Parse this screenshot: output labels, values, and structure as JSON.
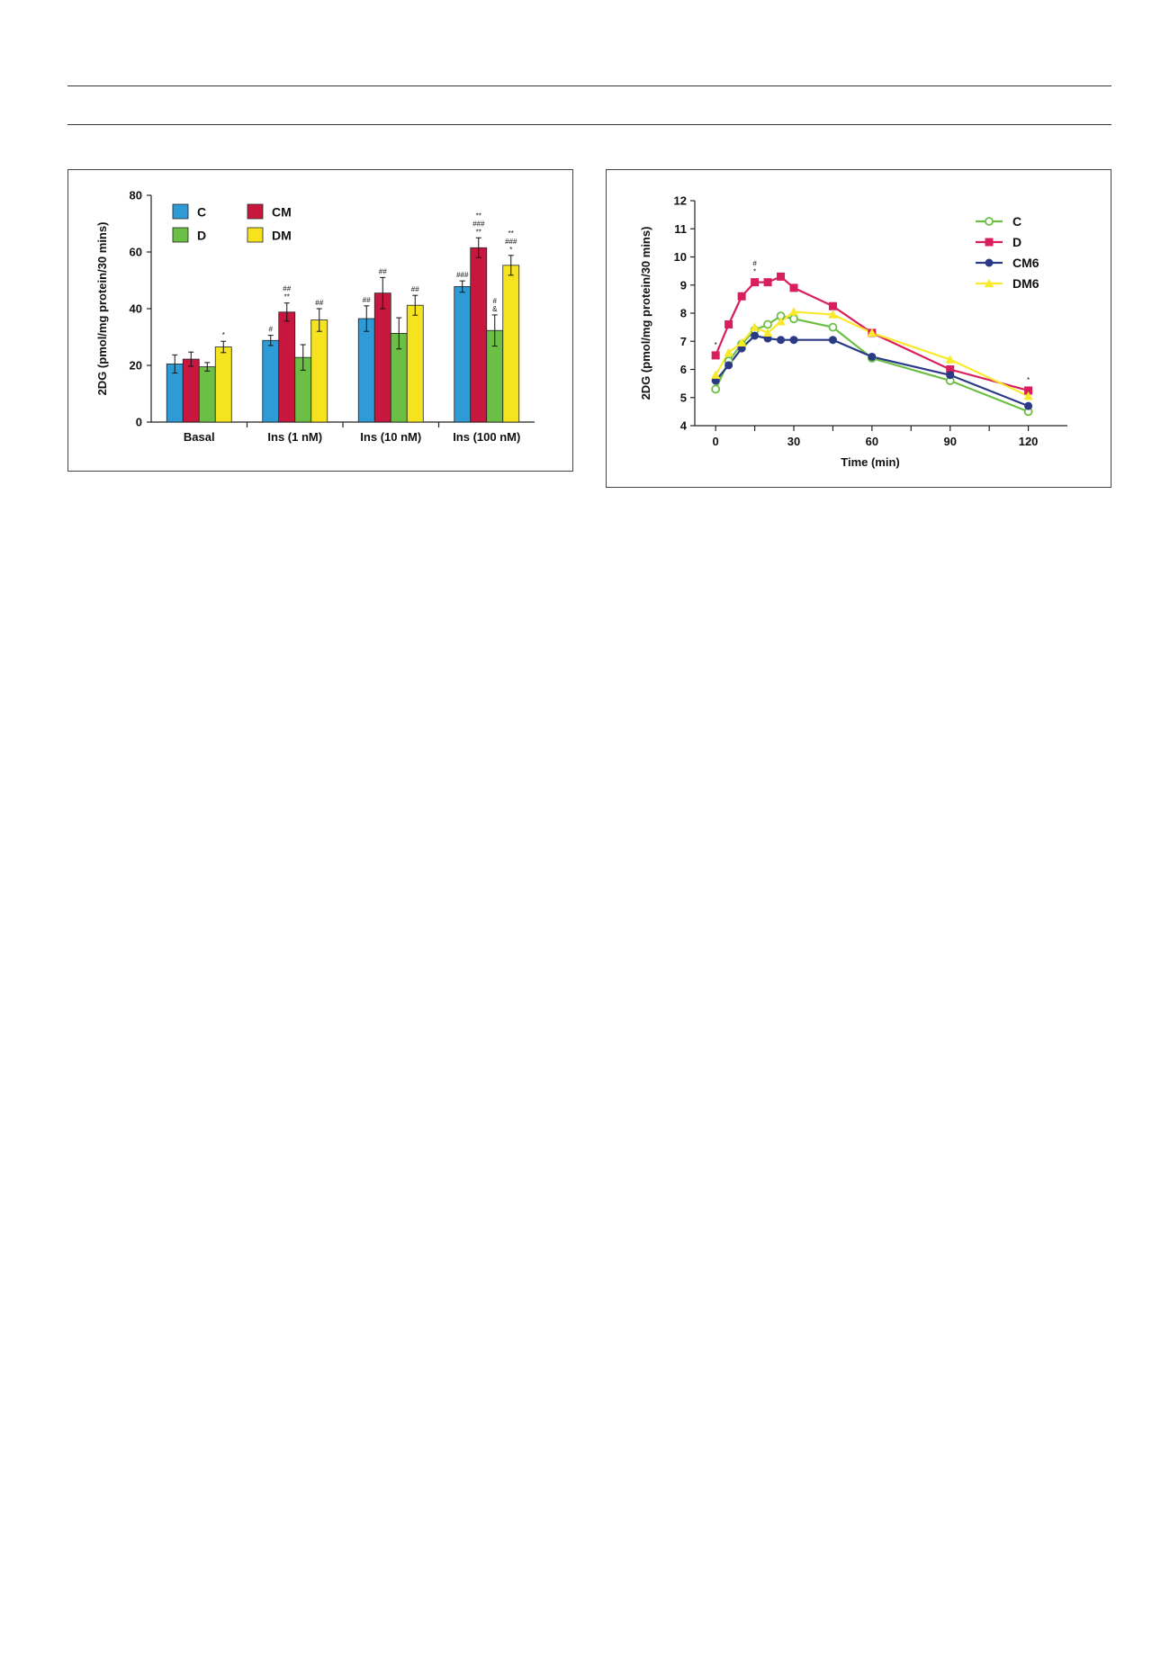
{
  "colors": {
    "C": "#2e9bd6",
    "CM": "#c8173f",
    "D": "#6cbf45",
    "DM": "#f6e320",
    "line_C": "#6cbf45",
    "line_D": "#d81e5b",
    "line_CM6": "#2b3a85",
    "line_DM6": "#f8ea2a",
    "axis": "#222222"
  },
  "chart_data": [
    {
      "type": "bar",
      "categories": [
        "Basal",
        "Ins (1 nM)",
        "Ins (10 nM)",
        "Ins (100 nM)"
      ],
      "ylabel": "2DG (pmol/mg protein/30 mins)",
      "xlabel": "",
      "ylim": [
        0,
        80
      ],
      "yticks": [
        0,
        20,
        40,
        60,
        80
      ],
      "legend": {
        "placement": "top-left",
        "columns": 2,
        "order": [
          "C",
          "CM",
          "D",
          "DM"
        ]
      },
      "series": [
        {
          "name": "C",
          "color_key": "C",
          "values": [
            20.5,
            28.8,
            36.5,
            47.8
          ],
          "errors": [
            3.2,
            1.8,
            4.5,
            2.0
          ],
          "annotations": [
            "",
            "#",
            "##",
            "###"
          ]
        },
        {
          "name": "CM",
          "color_key": "CM",
          "values": [
            22.2,
            38.8,
            45.5,
            61.5
          ],
          "errors": [
            2.5,
            3.2,
            5.5,
            3.5
          ],
          "annotations": [
            "",
            "##\n**",
            "##",
            "**\n###\n**"
          ]
        },
        {
          "name": "D",
          "color_key": "D",
          "values": [
            19.5,
            22.8,
            31.3,
            32.3
          ],
          "errors": [
            1.5,
            4.5,
            5.5,
            5.5
          ],
          "annotations": [
            "",
            "",
            "",
            "#\n&"
          ]
        },
        {
          "name": "DM",
          "color_key": "DM",
          "values": [
            26.5,
            36.0,
            41.2,
            55.3
          ],
          "errors": [
            2.0,
            4.0,
            3.5,
            3.5
          ],
          "annotations": [
            "*",
            "##",
            "##",
            "**\n###\n*"
          ]
        }
      ]
    },
    {
      "type": "line",
      "xlabel": "Time (min)",
      "ylabel": "2DG (pmol/mg protein/30 mins)",
      "xlim": [
        -8,
        135
      ],
      "ylim": [
        4,
        12
      ],
      "xticks": [
        0,
        30,
        60,
        90,
        120
      ],
      "yticks": [
        4,
        5,
        6,
        7,
        8,
        9,
        10,
        11,
        12
      ],
      "legend": {
        "placement": "top-right"
      },
      "series": [
        {
          "name": "C",
          "color_key": "line_C",
          "marker": "open-circle",
          "x": [
            0,
            5,
            10,
            15,
            20,
            25,
            30,
            45,
            60,
            90,
            120
          ],
          "y": [
            5.3,
            6.3,
            6.9,
            7.4,
            7.6,
            7.9,
            7.8,
            7.5,
            6.4,
            5.6,
            4.5
          ]
        },
        {
          "name": "D",
          "color_key": "line_D",
          "marker": "square",
          "x": [
            0,
            5,
            10,
            15,
            20,
            25,
            30,
            45,
            60,
            90,
            120
          ],
          "y": [
            6.5,
            7.6,
            8.6,
            9.1,
            9.1,
            9.3,
            8.9,
            8.25,
            7.3,
            6.0,
            5.25
          ]
        },
        {
          "name": "CM6",
          "color_key": "line_CM6",
          "marker": "circle",
          "x": [
            0,
            5,
            10,
            15,
            20,
            25,
            30,
            45,
            60,
            90,
            120
          ],
          "y": [
            5.6,
            6.15,
            6.75,
            7.2,
            7.1,
            7.05,
            7.05,
            7.05,
            6.45,
            5.8,
            4.7
          ]
        },
        {
          "name": "DM6",
          "color_key": "line_DM6",
          "marker": "triangle",
          "x": [
            0,
            5,
            10,
            15,
            20,
            25,
            30,
            45,
            60,
            90,
            120
          ],
          "y": [
            5.8,
            6.6,
            6.95,
            7.5,
            7.3,
            7.7,
            8.05,
            7.95,
            7.3,
            6.35,
            5.05
          ]
        }
      ],
      "annotations": [
        {
          "x": 0,
          "y": 6.5,
          "text": "*"
        },
        {
          "x": 15,
          "y": 9.1,
          "text": "#\n*"
        },
        {
          "x": 120,
          "y": 5.25,
          "text": "*"
        }
      ]
    }
  ]
}
